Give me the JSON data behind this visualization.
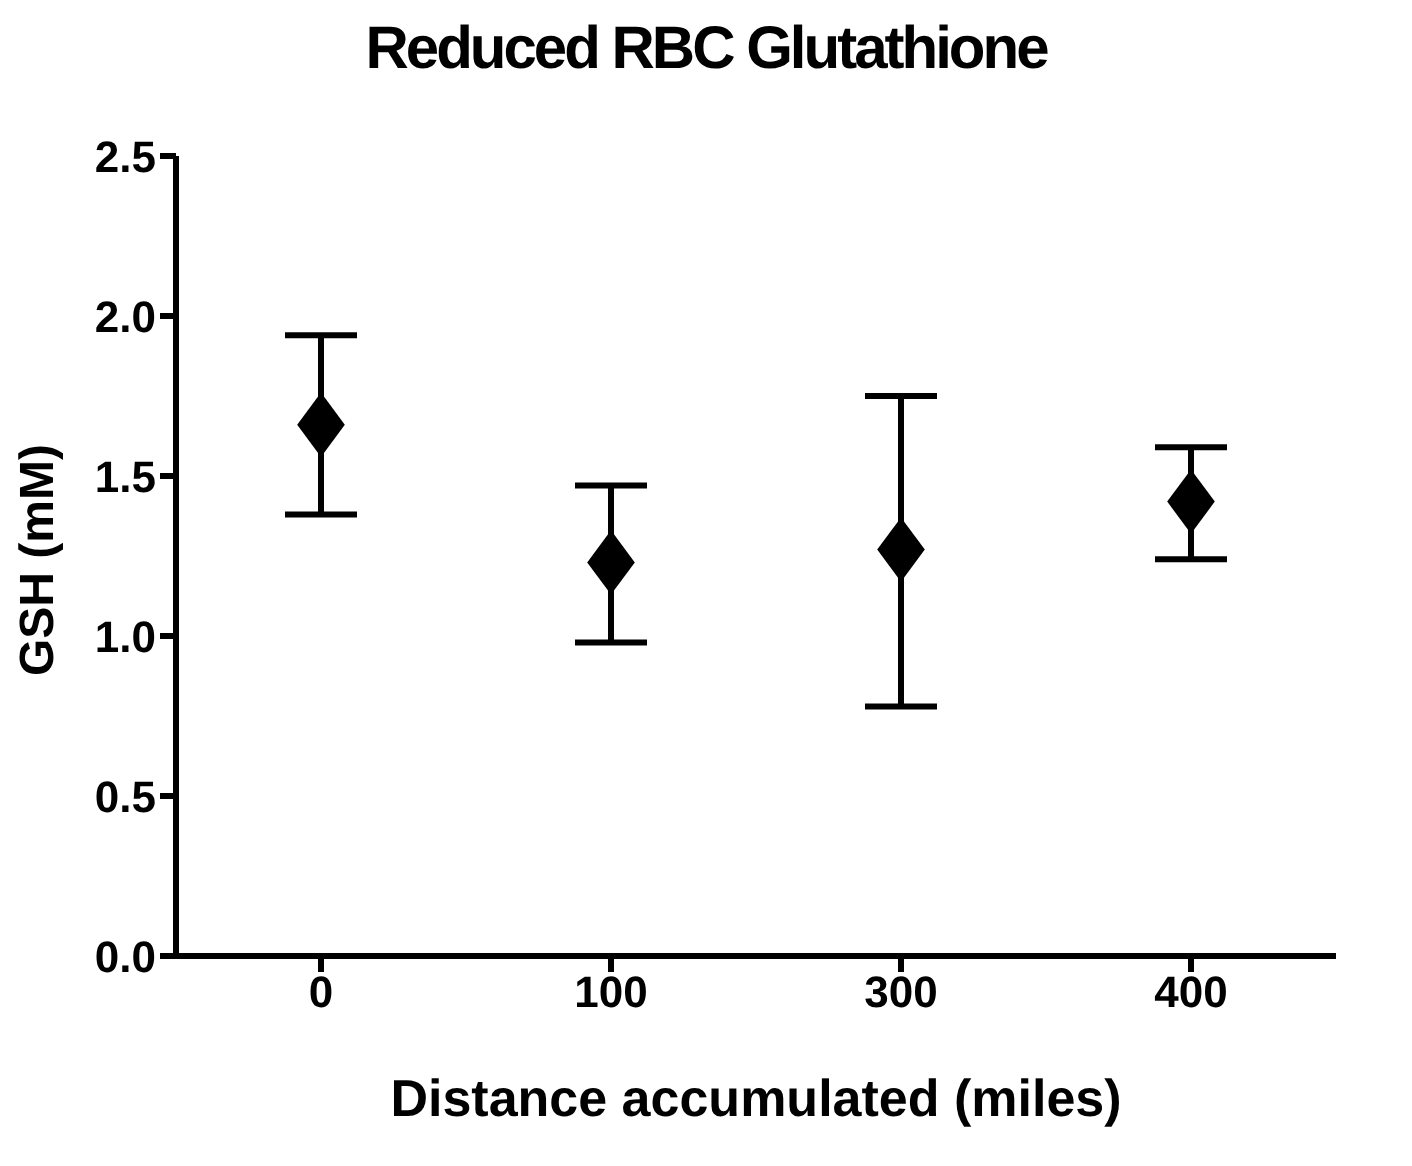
{
  "chart_data": {
    "type": "scatter",
    "title": "Reduced RBC Glutathione",
    "xlabel": "Distance accumulated (miles)",
    "ylabel": "GSH (mM)",
    "categories": [
      "0",
      "100",
      "300",
      "400"
    ],
    "series": [
      {
        "color": "#000000",
        "values": [
          1.66,
          1.23,
          1.27,
          1.42
        ],
        "errors": [
          [
            1.38,
            1.94
          ],
          [
            0.98,
            1.47
          ],
          [
            0.78,
            1.75
          ],
          [
            1.24,
            1.59
          ]
        ]
      }
    ],
    "ylim": [
      0,
      2.5
    ],
    "yticks": [
      {
        "value": 0,
        "label": "0.0"
      },
      {
        "value": 0.5,
        "label": "0.5"
      },
      {
        "value": 1,
        "label": "1.0"
      },
      {
        "value": 1.5,
        "label": "1.5"
      },
      {
        "value": 2,
        "label": "2.0"
      },
      {
        "value": 2.5,
        "label": "2.5"
      }
    ],
    "grid": false,
    "marker": "diamond"
  }
}
